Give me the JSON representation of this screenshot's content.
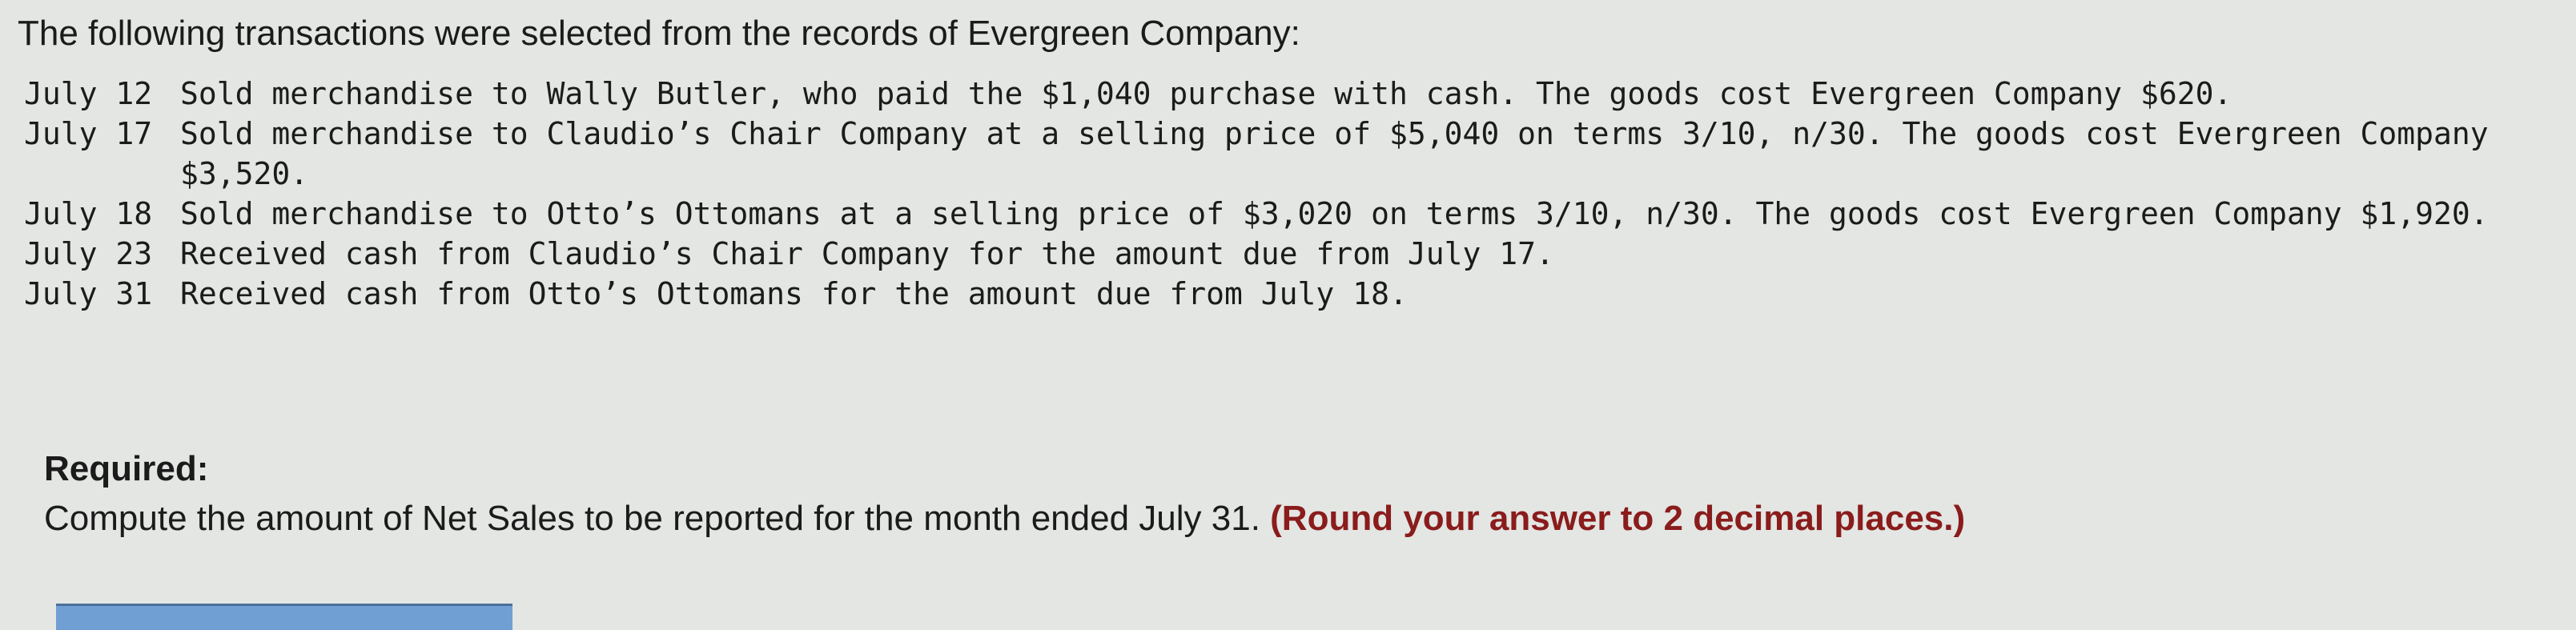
{
  "intro": "The following transactions were selected from the records of Evergreen Company:",
  "transactions": [
    {
      "date": "July 12",
      "text": "Sold merchandise to Wally Butler, who paid the $1,040 purchase with cash. The goods cost Evergreen Company $620."
    },
    {
      "date": "July 17",
      "text": "Sold merchandise to Claudio’s Chair Company at a selling price of $5,040 on terms 3/10, n/30. The goods cost Evergreen Company $3,520."
    },
    {
      "date": "July 18",
      "text": "Sold merchandise to Otto’s Ottomans at a selling price of $3,020 on terms 3/10, n/30. The goods cost Evergreen Company $1,920."
    },
    {
      "date": "July 23",
      "text": "Received cash from Claudio’s Chair Company for the amount due from July 17."
    },
    {
      "date": "July 31",
      "text": "Received cash from Otto’s Ottomans for the amount due from July 18."
    }
  ],
  "required": {
    "label": "Required:",
    "question": "Compute the amount of Net Sales to be reported for the month ended July 31. ",
    "note": "(Round your answer to 2 decimal places.)"
  },
  "colors": {
    "note": "#8a1c1c",
    "answer_bar": "#6f9fd3"
  }
}
